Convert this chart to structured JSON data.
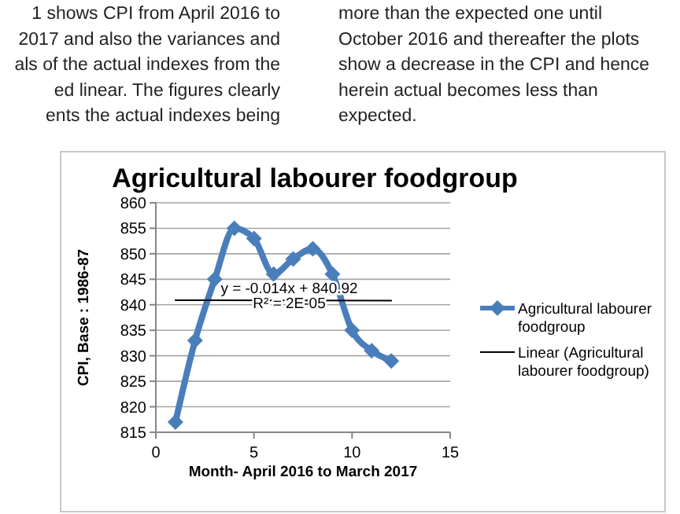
{
  "chart_data": {
    "type": "line",
    "title": "Agricultural labourer foodgroup",
    "xlabel": "Month- April 2016 to March 2017",
    "ylabel": "CPI, Base : 1986-87",
    "x": [
      1,
      2,
      3,
      4,
      5,
      6,
      7,
      8,
      9,
      10,
      11,
      12
    ],
    "series": [
      {
        "name": "Agricultural labourer foodgroup",
        "color": "#4a7ebb",
        "marker": "diamond",
        "values": [
          817,
          833,
          845,
          855,
          853,
          846,
          849,
          851,
          846,
          835,
          831,
          829
        ]
      },
      {
        "name": "Linear (Agricultural labourer foodgroup)",
        "color": "#000000",
        "marker": "none",
        "x": [
          1,
          12
        ],
        "values": [
          840.9,
          840.8
        ]
      }
    ],
    "xlim": [
      0,
      15
    ],
    "xticks": [
      0,
      5,
      10,
      15
    ],
    "ylim": [
      815,
      860
    ],
    "yticks": [
      815,
      820,
      825,
      830,
      835,
      840,
      845,
      850,
      855,
      860
    ],
    "grid": "y",
    "legend": "right",
    "annotations": [
      {
        "text": "y = -0.014x + 840.92",
        "x": 6.8,
        "y": 842.3
      },
      {
        "text": "R² = 2E-05",
        "x": 6.8,
        "y": 839.3
      },
      "1 shows CPI from April 2016 to",
      "2017 and also the variances and",
      "als of the actual indexes from the",
      "ed linear. The figures clearly",
      "ents the actual indexes being",
      "more than the expected one until",
      "October 2016 and thereafter the plots",
      "show a decrease in the CPI and hence",
      "herein actual becomes less than",
      "expected."
    ]
  }
}
